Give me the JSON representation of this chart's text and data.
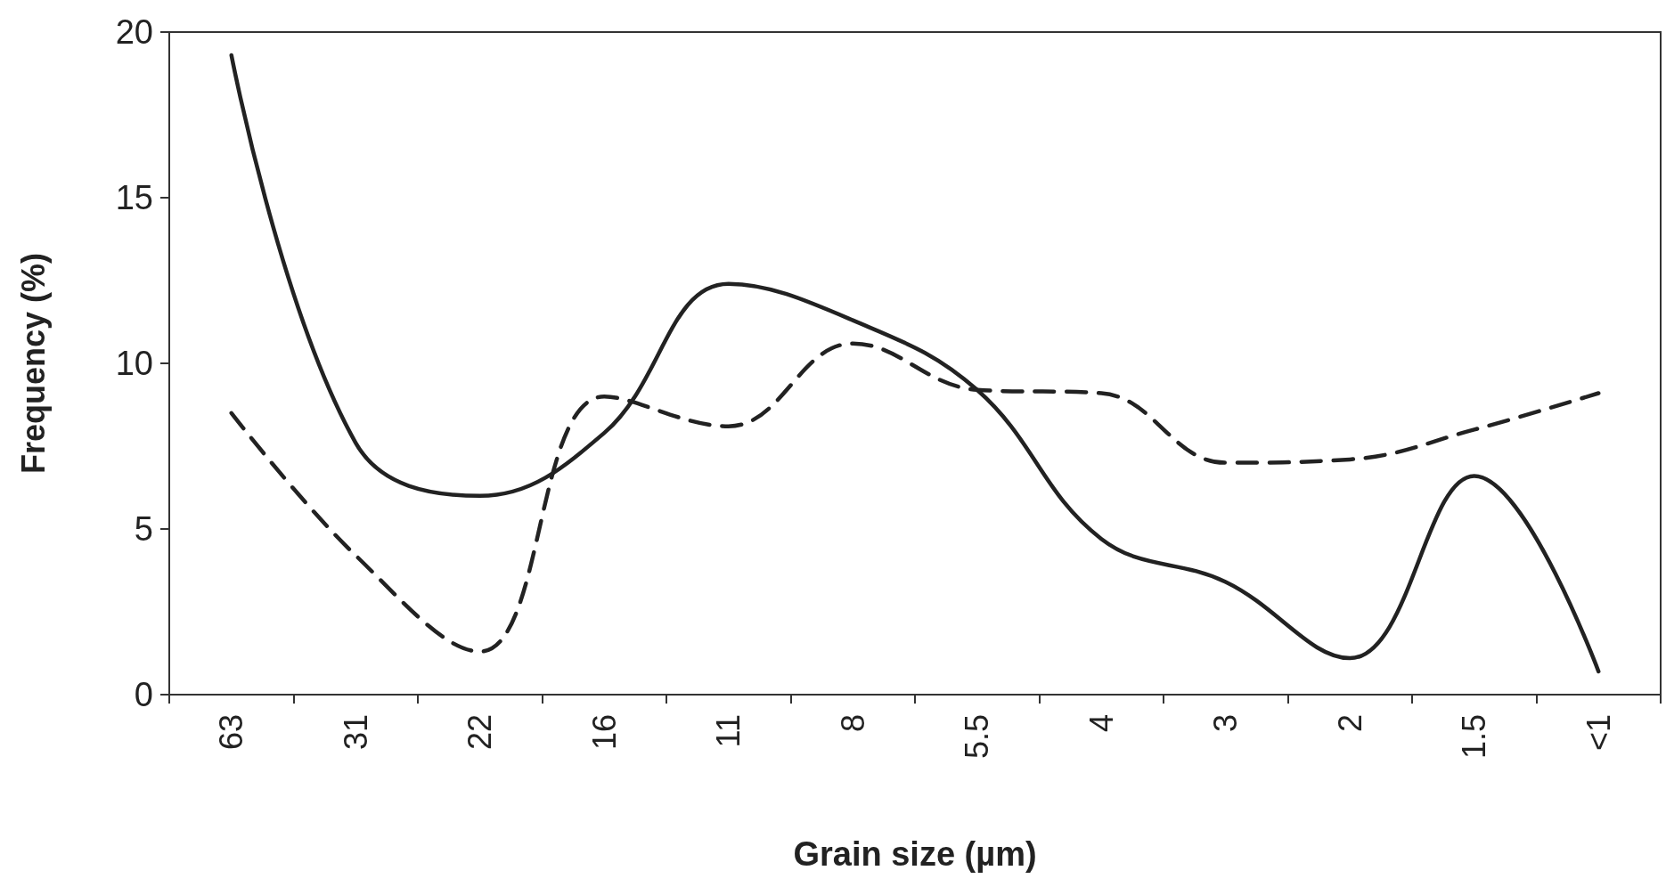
{
  "chart_data": {
    "type": "line",
    "xlabel": "Grain size (µm)",
    "ylabel": "Frequency (%)",
    "categories": [
      "63",
      "31",
      "22",
      "16",
      "11",
      "8",
      "5.5",
      "4",
      "3",
      "2",
      "1.5",
      "<1"
    ],
    "series": [
      {
        "color": "#222222",
        "line_style": "solid",
        "values": [
          19.3,
          7.6,
          6.0,
          7.9,
          12.4,
          11.3,
          9.2,
          4.7,
          3.4,
          1.1,
          6.6,
          0.7
        ]
      },
      {
        "color": "#222222",
        "line_style": "dashed",
        "values": [
          8.5,
          4.2,
          1.3,
          9.0,
          8.1,
          10.6,
          9.2,
          9.1,
          7.0,
          7.1,
          8.0,
          9.1
        ]
      }
    ],
    "ylim": [
      0,
      20
    ],
    "yticks": [
      0,
      5,
      10,
      15,
      20
    ],
    "grid": false,
    "marker": "none"
  }
}
